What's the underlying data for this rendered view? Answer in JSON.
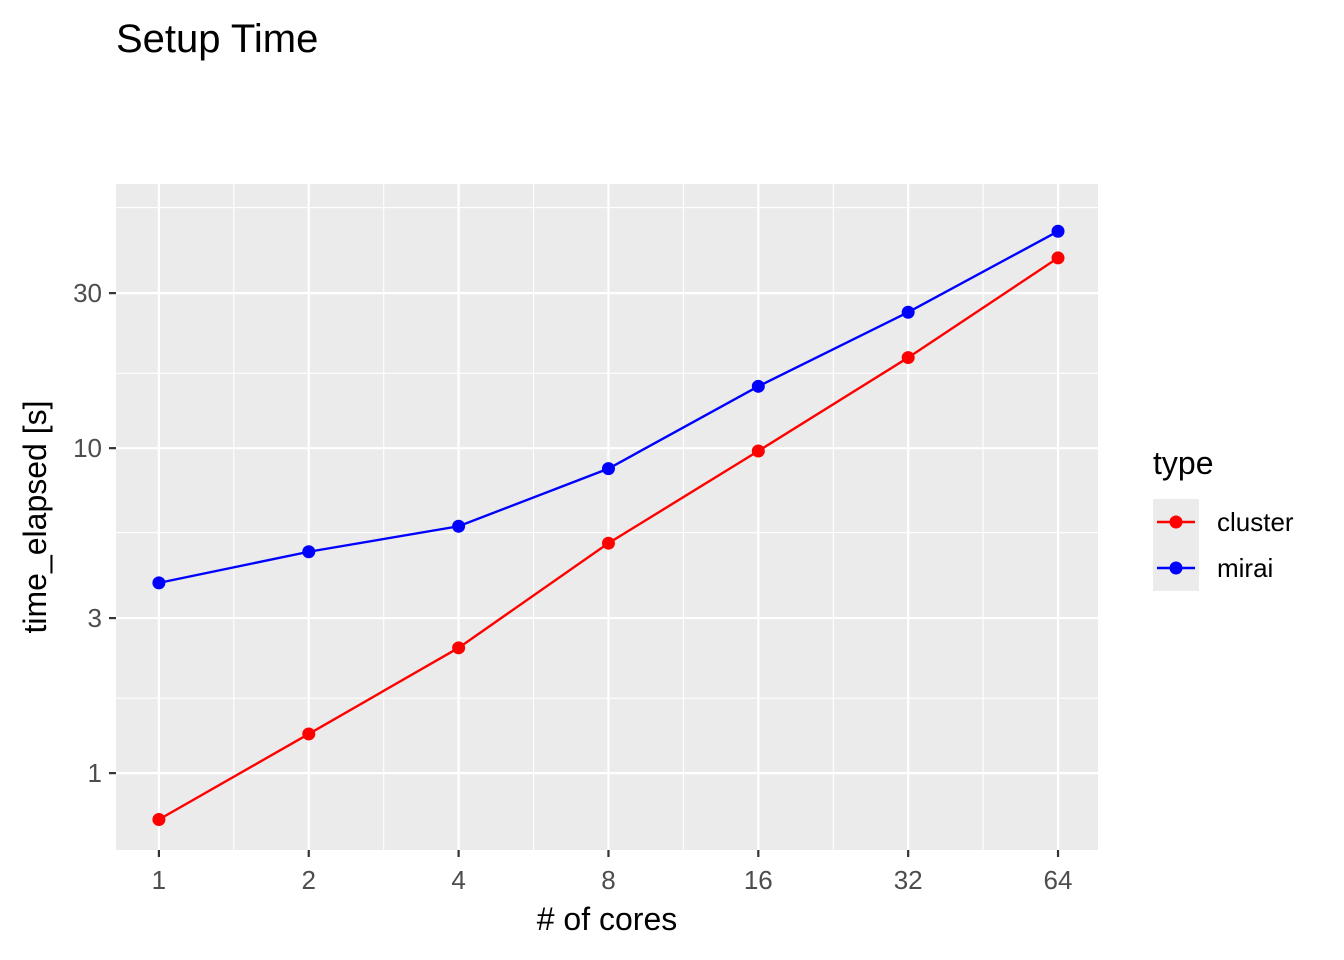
{
  "chart_data": {
    "type": "line",
    "title": "Setup Time",
    "xlabel": "# of cores",
    "ylabel": "time_elapsed [s]",
    "x_scale": "log2",
    "y_scale": "log10",
    "x": [
      1,
      2,
      4,
      8,
      16,
      32,
      64
    ],
    "x_tick_labels": [
      "1",
      "2",
      "4",
      "8",
      "16",
      "32",
      "64"
    ],
    "y_ticks": [
      1,
      3,
      10,
      30
    ],
    "y_tick_labels": [
      "1",
      "3",
      "10",
      "30"
    ],
    "y_minor_ticks": [
      0.5,
      1.7,
      5.5,
      17,
      55
    ],
    "xlim": [
      0.82,
      77
    ],
    "ylim": [
      0.58,
      65
    ],
    "legend_title": "type",
    "legend_position": "right",
    "grid": true,
    "panel_background": "#ebebeb",
    "series": [
      {
        "name": "cluster",
        "color": "#ff0000",
        "values": [
          0.72,
          1.32,
          2.43,
          5.1,
          9.8,
          19.0,
          38.5
        ]
      },
      {
        "name": "mirai",
        "color": "#0000ff",
        "values": [
          3.85,
          4.8,
          5.75,
          8.65,
          15.5,
          26.2,
          46.5
        ]
      }
    ]
  }
}
